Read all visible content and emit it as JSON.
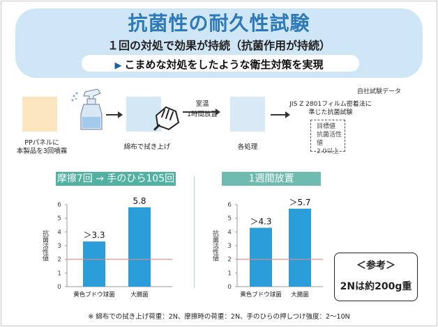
{
  "header": {
    "title": "抗菌性の耐久性試験",
    "subtitle": "１回の対処で効果が持続（抗菌作用が持続）",
    "pill": "こまめな対処をしたような衛生対策を実現"
  },
  "flow": {
    "source": "自社試験データ",
    "step1_label": "PPパネルに\n本製品を3回噴霧",
    "step2_label": "綿布で拭き上げ",
    "arrow_label": "室温\n1時間放置",
    "step3_label": "各処理",
    "step4_label": "JIS Z 2801フィルム密着法に\n準じた抗菌試験",
    "target_label": "目標値\n抗菌活性値\n2.0以上"
  },
  "colors": {
    "bar": "#2b9ed9",
    "ref_line": "#e08a8a",
    "panel_head": "#52b2a2"
  },
  "chart_data": [
    {
      "type": "bar",
      "title": "摩擦7回 → 手のひら105回",
      "ylabel": "抗菌活性値",
      "ylim": [
        0,
        6
      ],
      "yticks": [
        "0",
        "1",
        "2",
        "3",
        "4",
        "5",
        "6"
      ],
      "reference_line": 2,
      "grid": false,
      "categories": [
        "黄色ブドウ球菌",
        "大腸菌"
      ],
      "values": [
        3.3,
        5.8
      ],
      "value_labels": [
        "＞3.3",
        "5.8"
      ]
    },
    {
      "type": "bar",
      "title": "1週間放置",
      "ylabel": "抗菌活性値",
      "ylim": [
        0,
        6
      ],
      "yticks": [
        "0",
        "1",
        "2",
        "3",
        "4",
        "5",
        "6"
      ],
      "reference_line": 2,
      "grid": false,
      "categories": [
        "黄色ブドウ球菌",
        "大腸菌"
      ],
      "values": [
        4.3,
        5.7
      ],
      "value_labels": [
        "＞4.3",
        "＞5.7"
      ]
    }
  ],
  "reference": {
    "title": "＜参考＞",
    "text": "2Nは約200g重"
  },
  "footnote": "※ 綿布での拭き上げ荷重：2N、摩擦時の荷重：2N、手のひらの押しつけ強度：2～10N"
}
